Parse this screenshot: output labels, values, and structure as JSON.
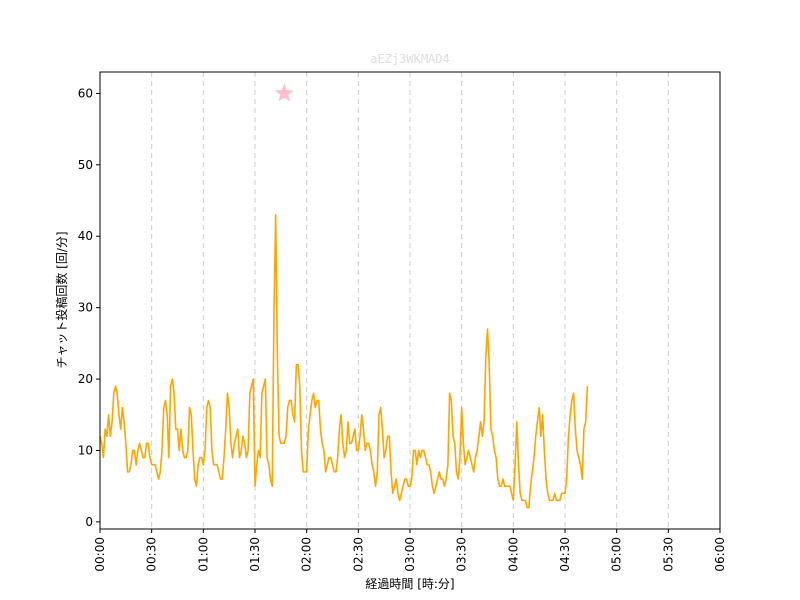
{
  "chart_data": {
    "type": "line",
    "title": "aEZj3WKMAD4",
    "xlabel": "経過時間 [時:分]",
    "ylabel": "チャット投稿回数 [回/分]",
    "xlim_minutes": [
      0,
      360
    ],
    "ylim": [
      -1,
      63
    ],
    "x_ticks": [
      0,
      30,
      60,
      90,
      120,
      150,
      180,
      210,
      240,
      270,
      300,
      330,
      360
    ],
    "x_tick_labels": [
      "00:00",
      "00:30",
      "01:00",
      "01:30",
      "02:00",
      "02:30",
      "03:00",
      "03:30",
      "04:00",
      "04:30",
      "05:00",
      "05:30",
      "06:00"
    ],
    "y_ticks": [
      0,
      10,
      20,
      30,
      40,
      50,
      60
    ],
    "y_tick_labels": [
      "0",
      "10",
      "20",
      "30",
      "40",
      "50",
      "60"
    ],
    "grid": "vertical dashed",
    "colors": {
      "line": "#ffa500",
      "marker": "#ffc0cb",
      "grid": "#cccccc",
      "title": "#dddddd"
    },
    "marker": {
      "shape": "star",
      "x": 107,
      "y": 60
    },
    "series": [
      {
        "values": [
          [
            0,
            12
          ],
          [
            1,
            11
          ],
          [
            2,
            9
          ],
          [
            3,
            13
          ],
          [
            4,
            12
          ],
          [
            5,
            15
          ],
          [
            6,
            12
          ],
          [
            7,
            14
          ],
          [
            8,
            18
          ],
          [
            9,
            19
          ],
          [
            10,
            18
          ],
          [
            11,
            15
          ],
          [
            12,
            13
          ],
          [
            13,
            16
          ],
          [
            14,
            14
          ],
          [
            15,
            11
          ],
          [
            16,
            7
          ],
          [
            17,
            7
          ],
          [
            18,
            8
          ],
          [
            19,
            10
          ],
          [
            20,
            10
          ],
          [
            21,
            8
          ],
          [
            22,
            10
          ],
          [
            23,
            11
          ],
          [
            24,
            10
          ],
          [
            25,
            9
          ],
          [
            26,
            9
          ],
          [
            27,
            11
          ],
          [
            28,
            11
          ],
          [
            29,
            9
          ],
          [
            30,
            8
          ],
          [
            31,
            8
          ],
          [
            32,
            8
          ],
          [
            33,
            7
          ],
          [
            34,
            6
          ],
          [
            35,
            7
          ],
          [
            36,
            10
          ],
          [
            37,
            16
          ],
          [
            38,
            17
          ],
          [
            39,
            15
          ],
          [
            40,
            9
          ],
          [
            41,
            19
          ],
          [
            42,
            20
          ],
          [
            43,
            18
          ],
          [
            44,
            13
          ],
          [
            45,
            13
          ],
          [
            46,
            10
          ],
          [
            47,
            13
          ],
          [
            48,
            10
          ],
          [
            49,
            9
          ],
          [
            50,
            9
          ],
          [
            51,
            10
          ],
          [
            52,
            16
          ],
          [
            53,
            15
          ],
          [
            54,
            10
          ],
          [
            55,
            6
          ],
          [
            56,
            5
          ],
          [
            57,
            8
          ],
          [
            58,
            9
          ],
          [
            59,
            9
          ],
          [
            60,
            8
          ],
          [
            61,
            10
          ],
          [
            62,
            16
          ],
          [
            63,
            17
          ],
          [
            64,
            16
          ],
          [
            65,
            10
          ],
          [
            66,
            8
          ],
          [
            67,
            8
          ],
          [
            68,
            8
          ],
          [
            69,
            7
          ],
          [
            70,
            6
          ],
          [
            71,
            6
          ],
          [
            72,
            9
          ],
          [
            73,
            13
          ],
          [
            74,
            18
          ],
          [
            75,
            16
          ],
          [
            76,
            11
          ],
          [
            77,
            9
          ],
          [
            78,
            11
          ],
          [
            79,
            12
          ],
          [
            80,
            13
          ],
          [
            81,
            9
          ],
          [
            82,
            10
          ],
          [
            83,
            12
          ],
          [
            84,
            11
          ],
          [
            85,
            9
          ],
          [
            86,
            10
          ],
          [
            87,
            18
          ],
          [
            88,
            19
          ],
          [
            89,
            20
          ],
          [
            90,
            5
          ],
          [
            91,
            8
          ],
          [
            92,
            10
          ],
          [
            93,
            9
          ],
          [
            94,
            18
          ],
          [
            95,
            19
          ],
          [
            96,
            20
          ],
          [
            97,
            9
          ],
          [
            98,
            8
          ],
          [
            99,
            6
          ],
          [
            100,
            5
          ],
          [
            101,
            29
          ],
          [
            102,
            43
          ],
          [
            103,
            23
          ],
          [
            104,
            12
          ],
          [
            105,
            11
          ],
          [
            106,
            11
          ],
          [
            107,
            11
          ],
          [
            108,
            12
          ],
          [
            109,
            16
          ],
          [
            110,
            17
          ],
          [
            111,
            17
          ],
          [
            112,
            15
          ],
          [
            113,
            14
          ],
          [
            114,
            22
          ],
          [
            115,
            22
          ],
          [
            116,
            19
          ],
          [
            117,
            10
          ],
          [
            118,
            7
          ],
          [
            119,
            7
          ],
          [
            120,
            7
          ],
          [
            121,
            13
          ],
          [
            122,
            15
          ],
          [
            123,
            17
          ],
          [
            124,
            18
          ],
          [
            125,
            16
          ],
          [
            126,
            17
          ],
          [
            127,
            17
          ],
          [
            128,
            13
          ],
          [
            129,
            11
          ],
          [
            130,
            10
          ],
          [
            131,
            7
          ],
          [
            132,
            8
          ],
          [
            133,
            9
          ],
          [
            134,
            9
          ],
          [
            135,
            8
          ],
          [
            136,
            7
          ],
          [
            137,
            7
          ],
          [
            138,
            9
          ],
          [
            139,
            13
          ],
          [
            140,
            15
          ],
          [
            141,
            11
          ],
          [
            142,
            9
          ],
          [
            143,
            10
          ],
          [
            144,
            14
          ],
          [
            145,
            11
          ],
          [
            146,
            11
          ],
          [
            147,
            12
          ],
          [
            148,
            13
          ],
          [
            149,
            10
          ],
          [
            150,
            10
          ],
          [
            151,
            12
          ],
          [
            152,
            15
          ],
          [
            153,
            13
          ],
          [
            154,
            10
          ],
          [
            155,
            11
          ],
          [
            156,
            11
          ],
          [
            157,
            10
          ],
          [
            158,
            8
          ],
          [
            159,
            7
          ],
          [
            160,
            5
          ],
          [
            161,
            7
          ],
          [
            162,
            15
          ],
          [
            163,
            16
          ],
          [
            164,
            13
          ],
          [
            165,
            9
          ],
          [
            166,
            10
          ],
          [
            167,
            12
          ],
          [
            168,
            12
          ],
          [
            169,
            7
          ],
          [
            170,
            4
          ],
          [
            171,
            5
          ],
          [
            172,
            6
          ],
          [
            173,
            4
          ],
          [
            174,
            3
          ],
          [
            175,
            4
          ],
          [
            176,
            5
          ],
          [
            177,
            6
          ],
          [
            178,
            6
          ],
          [
            179,
            5
          ],
          [
            180,
            5
          ],
          [
            181,
            6
          ],
          [
            182,
            10
          ],
          [
            183,
            10
          ],
          [
            184,
            8
          ],
          [
            185,
            10
          ],
          [
            186,
            9
          ],
          [
            187,
            10
          ],
          [
            188,
            10
          ],
          [
            189,
            9
          ],
          [
            190,
            8
          ],
          [
            191,
            8
          ],
          [
            192,
            7
          ],
          [
            193,
            5
          ],
          [
            194,
            4
          ],
          [
            195,
            5
          ],
          [
            196,
            6
          ],
          [
            197,
            7
          ],
          [
            198,
            6
          ],
          [
            199,
            6
          ],
          [
            200,
            5
          ],
          [
            201,
            6
          ],
          [
            202,
            8
          ],
          [
            203,
            18
          ],
          [
            204,
            17
          ],
          [
            205,
            12
          ],
          [
            206,
            11
          ],
          [
            207,
            7
          ],
          [
            208,
            6
          ],
          [
            209,
            9
          ],
          [
            210,
            16
          ],
          [
            211,
            11
          ],
          [
            212,
            8
          ],
          [
            213,
            9
          ],
          [
            214,
            10
          ],
          [
            215,
            9
          ],
          [
            216,
            8
          ],
          [
            217,
            7
          ],
          [
            218,
            9
          ],
          [
            219,
            10
          ],
          [
            220,
            12
          ],
          [
            221,
            14
          ],
          [
            222,
            12
          ],
          [
            223,
            14
          ],
          [
            224,
            23
          ],
          [
            225,
            27
          ],
          [
            226,
            22
          ],
          [
            227,
            13
          ],
          [
            228,
            12
          ],
          [
            229,
            10
          ],
          [
            230,
            9
          ],
          [
            231,
            6
          ],
          [
            232,
            5
          ],
          [
            233,
            5
          ],
          [
            234,
            6
          ],
          [
            235,
            5
          ],
          [
            236,
            5
          ],
          [
            237,
            5
          ],
          [
            238,
            5
          ],
          [
            239,
            4
          ],
          [
            240,
            3
          ],
          [
            241,
            8
          ],
          [
            242,
            14
          ],
          [
            243,
            8
          ],
          [
            244,
            4
          ],
          [
            245,
            3
          ],
          [
            246,
            3
          ],
          [
            247,
            3
          ],
          [
            248,
            2
          ],
          [
            249,
            2
          ],
          [
            250,
            5
          ],
          [
            251,
            7
          ],
          [
            252,
            9
          ],
          [
            253,
            12
          ],
          [
            254,
            14
          ],
          [
            255,
            16
          ],
          [
            256,
            12
          ],
          [
            257,
            15
          ],
          [
            258,
            10
          ],
          [
            259,
            6
          ],
          [
            260,
            4
          ],
          [
            261,
            3
          ],
          [
            262,
            3
          ],
          [
            263,
            3
          ],
          [
            264,
            4
          ],
          [
            265,
            3
          ],
          [
            266,
            3
          ],
          [
            267,
            3
          ],
          [
            268,
            4
          ],
          [
            269,
            4
          ],
          [
            270,
            4
          ],
          [
            271,
            6
          ],
          [
            272,
            12
          ],
          [
            273,
            15
          ],
          [
            274,
            17
          ],
          [
            275,
            18
          ],
          [
            276,
            13
          ],
          [
            277,
            10
          ],
          [
            278,
            9
          ],
          [
            279,
            8
          ],
          [
            280,
            6
          ],
          [
            281,
            13
          ],
          [
            282,
            14
          ],
          [
            283,
            19
          ]
        ]
      }
    ]
  }
}
